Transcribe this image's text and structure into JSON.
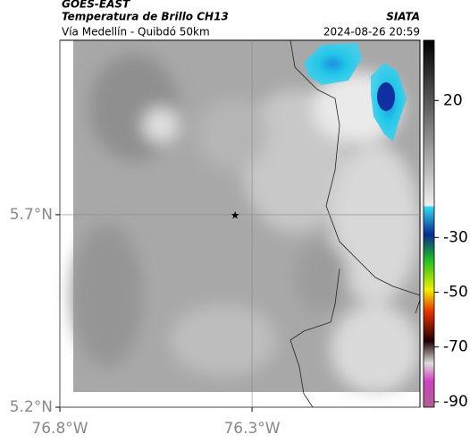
{
  "header": {
    "satellite": "GOES-EAST",
    "product": "Temperatura de Brillo CH13",
    "region": "Vía Medellín - Quibdó 50km",
    "source": "SIATA",
    "datetime": "2024-08-26 20:59"
  },
  "map": {
    "xlim": [
      -76.8,
      -75.863
    ],
    "ylim": [
      5.2,
      6.153
    ],
    "xticks": [
      {
        "value": -76.8,
        "label": "76.8°W"
      },
      {
        "value": -76.3,
        "label": "76.3°W"
      }
    ],
    "yticks": [
      {
        "value": 5.2,
        "label": "5.2°N"
      },
      {
        "value": 5.7,
        "label": "5.7°N"
      }
    ],
    "grid": true,
    "marker": {
      "lon": -76.344,
      "lat": 5.7
    }
  },
  "colorbar": {
    "clim": [
      -92,
      42
    ],
    "ticks": [
      20,
      -30,
      -50,
      -70,
      -90
    ]
  }
}
